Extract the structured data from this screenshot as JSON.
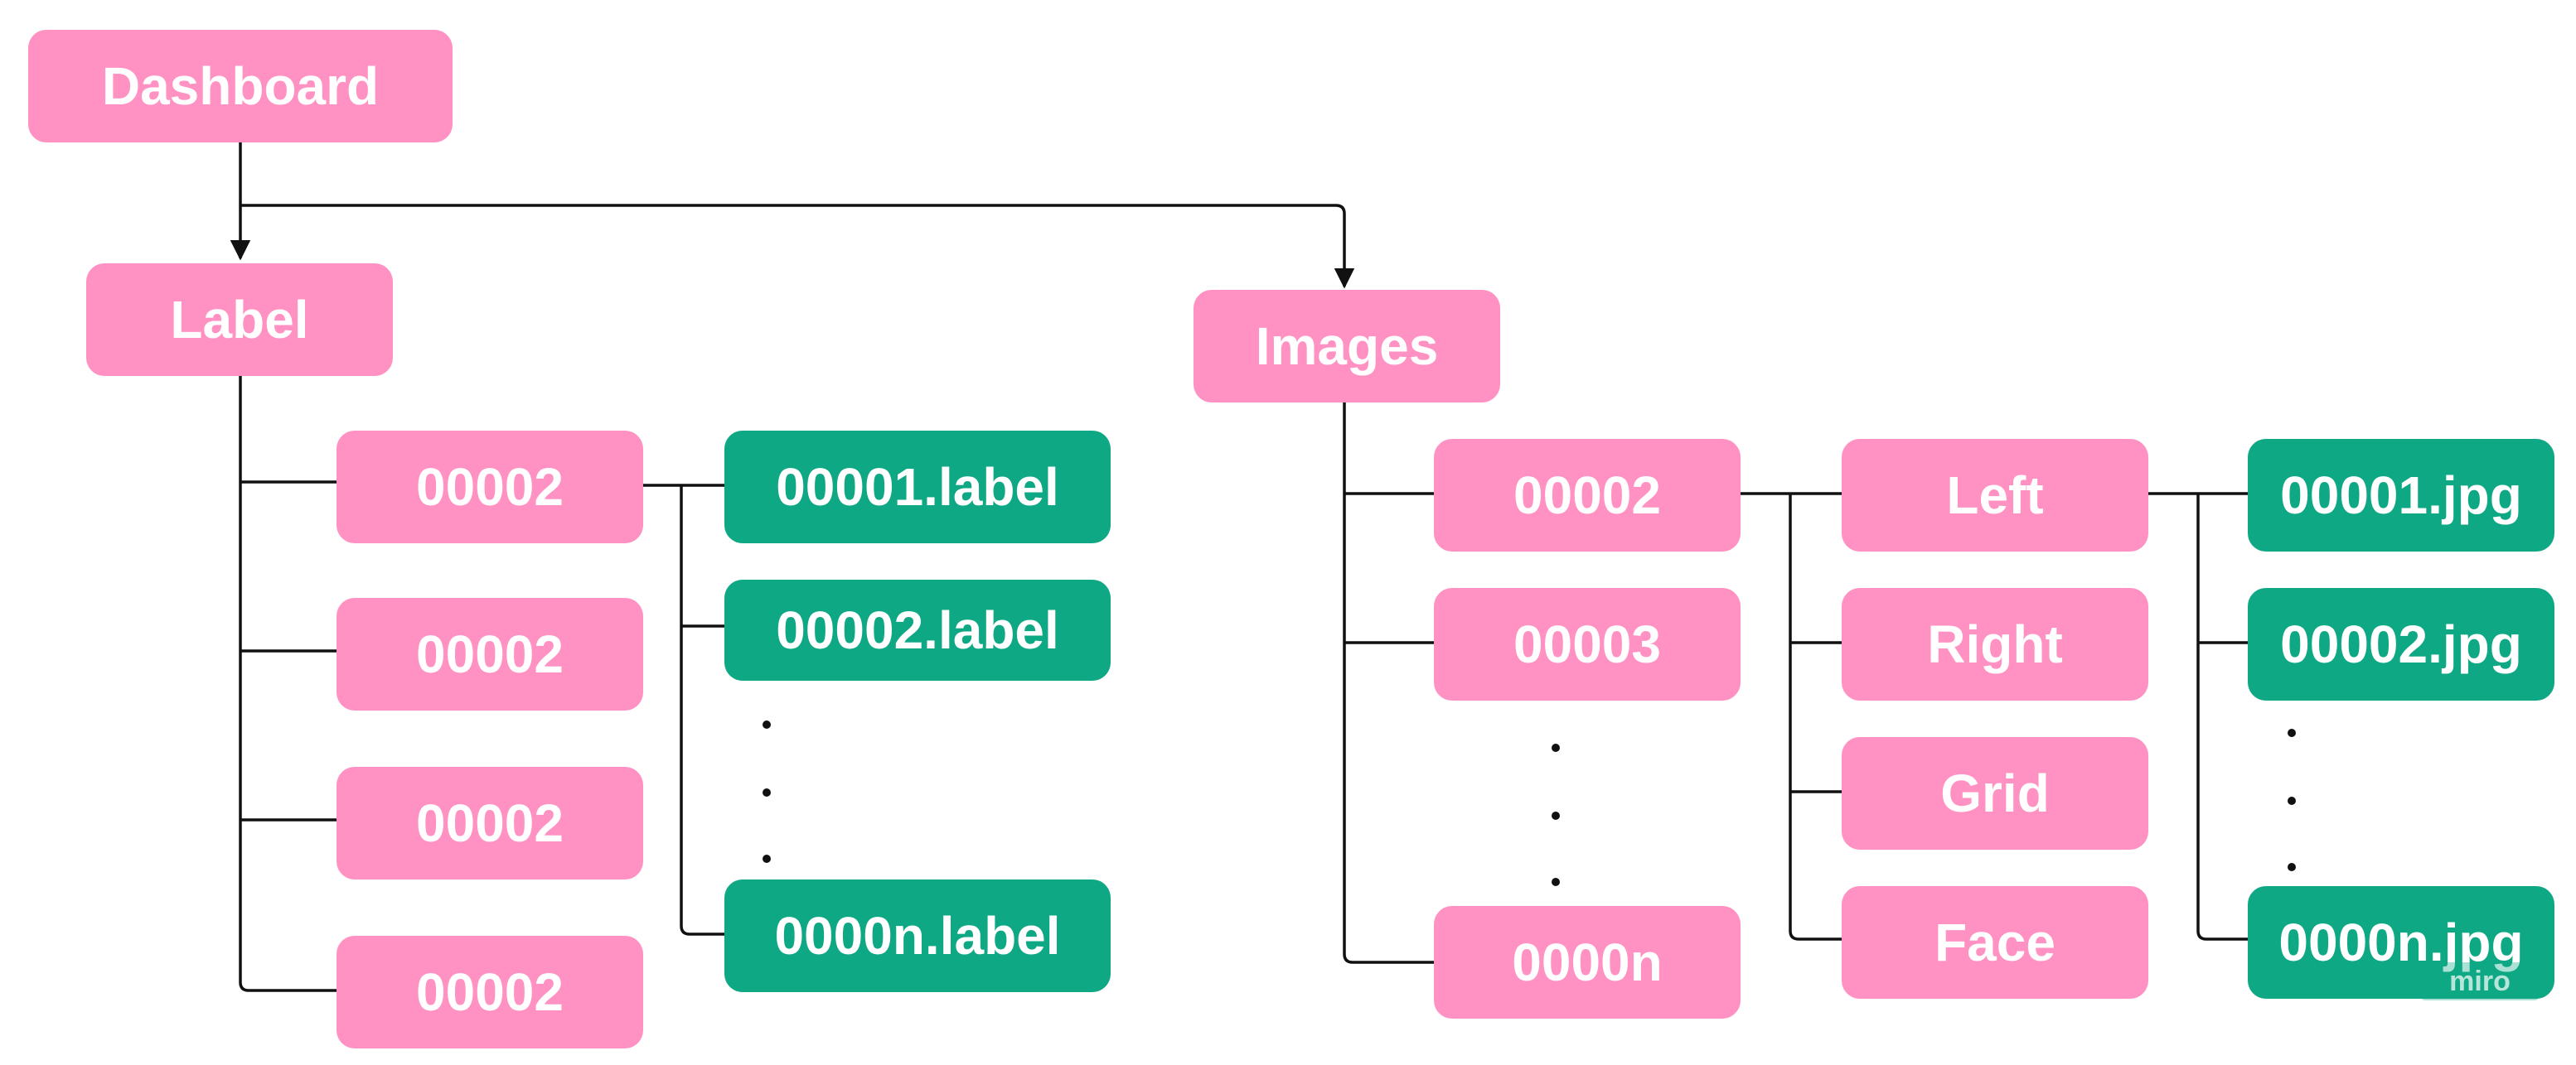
{
  "root": {
    "label": "Dashboard"
  },
  "label_branch": {
    "title": "Label",
    "folders": [
      "00002",
      "00002",
      "00002",
      "00002"
    ],
    "files": [
      "00001.label",
      "00002.label",
      "0000n.label"
    ]
  },
  "images_branch": {
    "title": "Images",
    "folders": [
      "00002",
      "00003",
      "0000n"
    ],
    "views": [
      "Left",
      "Right",
      "Grid",
      "Face"
    ],
    "files": [
      "00001.jpg",
      "00002.jpg",
      "0000n.jpg"
    ]
  },
  "watermark": "miro",
  "colors": {
    "folder": "#ff92c2",
    "file": "#0fa885",
    "connector": "#111111"
  }
}
